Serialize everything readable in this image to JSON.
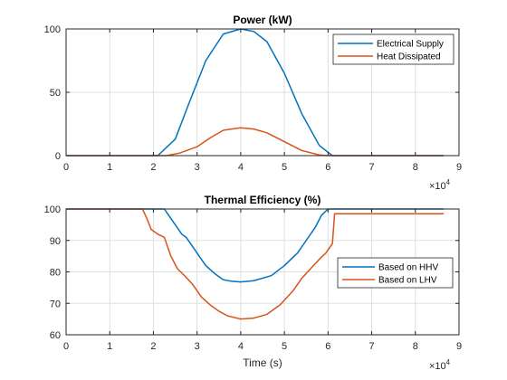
{
  "chart_data": [
    {
      "type": "line",
      "title": "Power (kW)",
      "xlabel": "",
      "ylabel": "",
      "xlim": [
        0,
        9
      ],
      "ylim": [
        0,
        100
      ],
      "x_exponent_label": "×10",
      "x_exponent_power": "4",
      "x_ticks": [
        0,
        1,
        2,
        3,
        4,
        5,
        6,
        7,
        8,
        9
      ],
      "y_ticks": [
        0,
        50,
        100
      ],
      "grid": true,
      "legend_location": "top-right",
      "series": [
        {
          "name": "Electrical Supply",
          "color": "#0072BD",
          "x": [
            0,
            2.1,
            2.5,
            2.8,
            3.2,
            3.6,
            4.0,
            4.3,
            4.6,
            5.0,
            5.4,
            5.8,
            6.1,
            6.5,
            8.65
          ],
          "y": [
            0,
            0,
            13,
            40,
            75,
            96,
            100,
            98,
            90,
            65,
            33,
            8,
            0,
            0,
            0
          ]
        },
        {
          "name": "Heat Dissipated",
          "color": "#D95319",
          "x": [
            0,
            2.3,
            2.6,
            3.0,
            3.3,
            3.6,
            4.0,
            4.3,
            4.6,
            5.0,
            5.4,
            5.8,
            6.0,
            6.5,
            8.65
          ],
          "y": [
            0,
            0,
            2,
            7,
            14,
            20,
            22,
            21,
            18,
            11,
            4,
            0.5,
            0,
            0,
            0
          ]
        }
      ]
    },
    {
      "type": "line",
      "title": "Thermal Efficiency (%)",
      "xlabel": "Time (s)",
      "ylabel": "",
      "xlim": [
        0,
        9
      ],
      "ylim": [
        60,
        100
      ],
      "x_exponent_label": "×10",
      "x_exponent_power": "4",
      "x_ticks": [
        0,
        1,
        2,
        3,
        4,
        5,
        6,
        7,
        8,
        9
      ],
      "y_ticks": [
        60,
        70,
        80,
        90,
        100
      ],
      "grid": true,
      "legend_location": "right",
      "series": [
        {
          "name": "Based on HHV",
          "color": "#0072BD",
          "x": [
            0,
            2.25,
            2.35,
            2.45,
            2.55,
            2.65,
            2.75,
            2.85,
            3.0,
            3.2,
            3.4,
            3.6,
            3.8,
            4.0,
            4.3,
            4.7,
            5.0,
            5.3,
            5.5,
            5.7,
            5.85,
            6.0,
            6.2,
            8.65
          ],
          "y": [
            100,
            100,
            98,
            96,
            94,
            92,
            91,
            89,
            86,
            82,
            79.5,
            77.5,
            77,
            76.8,
            77.2,
            78.8,
            82,
            86,
            90,
            94,
            98,
            100,
            100,
            100
          ]
        },
        {
          "name": "Based on LHV",
          "color": "#D95319",
          "x": [
            0,
            1.75,
            1.85,
            1.95,
            2.1,
            2.25,
            2.4,
            2.55,
            2.7,
            2.9,
            3.1,
            3.3,
            3.5,
            3.7,
            4.0,
            4.3,
            4.6,
            4.9,
            5.2,
            5.4,
            5.6,
            5.8,
            5.95,
            6.05,
            6.1,
            6.15,
            8.65
          ],
          "y": [
            100,
            100,
            97,
            93.5,
            92,
            91,
            85,
            81,
            79,
            76,
            72,
            69.5,
            67.5,
            66,
            65,
            65.3,
            66.5,
            69.5,
            74,
            78,
            81,
            84,
            86,
            88,
            89,
            98.5,
            98.5
          ]
        }
      ]
    }
  ]
}
